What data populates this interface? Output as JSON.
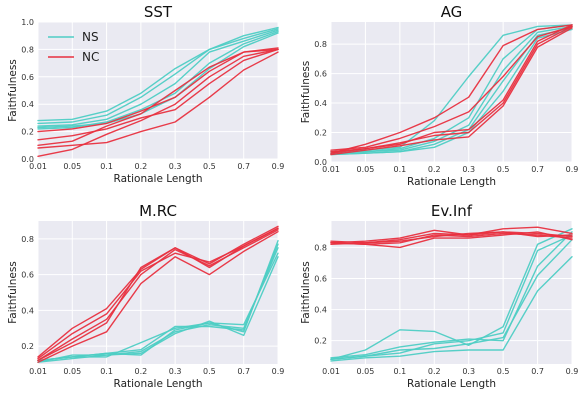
{
  "colors": {
    "NS": "#4ecdc4",
    "NC": "#e8303f",
    "panel_bg": "#eaeaf2",
    "grid": "#ffffff"
  },
  "chart_data": [
    {
      "type": "line",
      "title": "SST",
      "xlabel": "Rationale Length",
      "ylabel": "Faithfulness",
      "x": [
        "0.01",
        "0.05",
        "0.1",
        "0.2",
        "0.3",
        "0.5",
        "0.7",
        "0.9"
      ],
      "ylim": [
        0.0,
        1.0
      ],
      "yticks": [
        "0.0",
        "0.2",
        "0.4",
        "0.6",
        "0.8",
        "1.0"
      ],
      "ytick_values": [
        0.0,
        0.2,
        0.4,
        0.6,
        0.8,
        1.0
      ],
      "grid": true,
      "legend": {
        "placement": "top-left",
        "entries": [
          "NS",
          "NC"
        ]
      },
      "series": [
        {
          "group": "NS",
          "values": [
            0.26,
            0.27,
            0.32,
            0.45,
            0.62,
            0.8,
            0.88,
            0.95
          ]
        },
        {
          "group": "NS",
          "values": [
            0.24,
            0.25,
            0.29,
            0.4,
            0.55,
            0.78,
            0.86,
            0.94
          ]
        },
        {
          "group": "NS",
          "values": [
            0.22,
            0.23,
            0.27,
            0.36,
            0.48,
            0.7,
            0.84,
            0.93
          ]
        },
        {
          "group": "NS",
          "values": [
            0.28,
            0.29,
            0.35,
            0.48,
            0.66,
            0.8,
            0.9,
            0.96
          ]
        },
        {
          "group": "NS",
          "values": [
            0.23,
            0.24,
            0.26,
            0.33,
            0.45,
            0.66,
            0.82,
            0.92
          ]
        },
        {
          "group": "NC",
          "values": [
            0.02,
            0.07,
            0.18,
            0.28,
            0.4,
            0.6,
            0.75,
            0.8
          ]
        },
        {
          "group": "NC",
          "values": [
            0.08,
            0.1,
            0.12,
            0.2,
            0.27,
            0.45,
            0.65,
            0.78
          ]
        },
        {
          "group": "NC",
          "values": [
            0.14,
            0.17,
            0.22,
            0.3,
            0.36,
            0.55,
            0.72,
            0.8
          ]
        },
        {
          "group": "NC",
          "values": [
            0.2,
            0.22,
            0.26,
            0.35,
            0.45,
            0.64,
            0.78,
            0.81
          ]
        },
        {
          "group": "NC",
          "values": [
            0.1,
            0.13,
            0.24,
            0.33,
            0.5,
            0.67,
            0.78,
            0.8
          ]
        }
      ]
    },
    {
      "type": "line",
      "title": "AG",
      "xlabel": "Rationale Length",
      "ylabel": "Faithfulness",
      "x": [
        "0.01",
        "0.05",
        "0.1",
        "0.2",
        "0.3",
        "0.5",
        "0.7",
        "0.9"
      ],
      "ylim": [
        0.0,
        0.95
      ],
      "yticks": [
        "0.0",
        "0.2",
        "0.4",
        "0.6",
        "0.8"
      ],
      "ytick_values": [
        0.0,
        0.2,
        0.4,
        0.6,
        0.8
      ],
      "grid": true,
      "series": [
        {
          "group": "NS",
          "values": [
            0.07,
            0.08,
            0.1,
            0.28,
            0.58,
            0.86,
            0.92,
            0.93
          ]
        },
        {
          "group": "NS",
          "values": [
            0.06,
            0.07,
            0.08,
            0.14,
            0.25,
            0.62,
            0.88,
            0.92
          ]
        },
        {
          "group": "NS",
          "values": [
            0.05,
            0.06,
            0.07,
            0.12,
            0.22,
            0.55,
            0.86,
            0.91
          ]
        },
        {
          "group": "NS",
          "values": [
            0.06,
            0.07,
            0.09,
            0.16,
            0.3,
            0.7,
            0.9,
            0.93
          ]
        },
        {
          "group": "NS",
          "values": [
            0.05,
            0.06,
            0.07,
            0.1,
            0.2,
            0.48,
            0.84,
            0.9
          ]
        },
        {
          "group": "NC",
          "values": [
            0.06,
            0.12,
            0.2,
            0.3,
            0.44,
            0.79,
            0.9,
            0.93
          ]
        },
        {
          "group": "NC",
          "values": [
            0.07,
            0.09,
            0.13,
            0.18,
            0.2,
            0.4,
            0.8,
            0.92
          ]
        },
        {
          "group": "NC",
          "values": [
            0.05,
            0.08,
            0.11,
            0.15,
            0.17,
            0.38,
            0.78,
            0.91
          ]
        },
        {
          "group": "NC",
          "values": [
            0.08,
            0.1,
            0.16,
            0.24,
            0.34,
            0.58,
            0.85,
            0.92
          ]
        },
        {
          "group": "NC",
          "values": [
            0.06,
            0.09,
            0.12,
            0.2,
            0.22,
            0.42,
            0.82,
            0.93
          ]
        }
      ]
    },
    {
      "type": "line",
      "title": "M.RC",
      "xlabel": "Rationale Length",
      "ylabel": "Faithfulness",
      "x": [
        "0.01",
        "0.05",
        "0.1",
        "0.2",
        "0.3",
        "0.5",
        "0.7",
        "0.9"
      ],
      "ylim": [
        0.1,
        0.9
      ],
      "yticks": [
        "0.2",
        "0.4",
        "0.6",
        "0.8"
      ],
      "ytick_values": [
        0.2,
        0.4,
        0.6,
        0.8
      ],
      "grid": true,
      "series": [
        {
          "group": "NS",
          "values": [
            0.12,
            0.14,
            0.14,
            0.22,
            0.3,
            0.33,
            0.28,
            0.79
          ]
        },
        {
          "group": "NS",
          "values": [
            0.11,
            0.13,
            0.15,
            0.17,
            0.28,
            0.32,
            0.3,
            0.75
          ]
        },
        {
          "group": "NS",
          "values": [
            0.12,
            0.14,
            0.16,
            0.15,
            0.29,
            0.33,
            0.32,
            0.72
          ]
        },
        {
          "group": "NS",
          "values": [
            0.11,
            0.15,
            0.15,
            0.16,
            0.27,
            0.34,
            0.26,
            0.7
          ]
        },
        {
          "group": "NS",
          "values": [
            0.12,
            0.14,
            0.16,
            0.18,
            0.31,
            0.31,
            0.29,
            0.77
          ]
        },
        {
          "group": "NC",
          "values": [
            0.14,
            0.3,
            0.41,
            0.63,
            0.75,
            0.64,
            0.76,
            0.86
          ]
        },
        {
          "group": "NC",
          "values": [
            0.12,
            0.24,
            0.35,
            0.6,
            0.74,
            0.65,
            0.75,
            0.85
          ]
        },
        {
          "group": "NC",
          "values": [
            0.11,
            0.2,
            0.28,
            0.55,
            0.7,
            0.6,
            0.73,
            0.84
          ]
        },
        {
          "group": "NC",
          "values": [
            0.13,
            0.27,
            0.38,
            0.62,
            0.72,
            0.67,
            0.76,
            0.86
          ]
        },
        {
          "group": "NC",
          "values": [
            0.12,
            0.22,
            0.33,
            0.64,
            0.75,
            0.66,
            0.77,
            0.87
          ]
        }
      ]
    },
    {
      "type": "line",
      "title": "Ev.Inf",
      "xlabel": "Rationale Length",
      "ylabel": "Faithfulness",
      "x": [
        "0.01",
        "0.05",
        "0.1",
        "0.2",
        "0.3",
        "0.5",
        "0.7",
        "0.9"
      ],
      "ylim": [
        0.05,
        0.97
      ],
      "yticks": [
        "0.2",
        "0.4",
        "0.6",
        "0.8"
      ],
      "ytick_values": [
        0.2,
        0.4,
        0.6,
        0.8
      ],
      "grid": true,
      "series": [
        {
          "group": "NS",
          "values": [
            0.08,
            0.14,
            0.27,
            0.26,
            0.17,
            0.29,
            0.82,
            0.92
          ]
        },
        {
          "group": "NS",
          "values": [
            0.08,
            0.1,
            0.12,
            0.18,
            0.2,
            0.25,
            0.78,
            0.88
          ]
        },
        {
          "group": "NS",
          "values": [
            0.07,
            0.09,
            0.1,
            0.13,
            0.14,
            0.14,
            0.52,
            0.74
          ]
        },
        {
          "group": "NS",
          "values": [
            0.09,
            0.11,
            0.16,
            0.19,
            0.21,
            0.2,
            0.68,
            0.9
          ]
        },
        {
          "group": "NS",
          "values": [
            0.08,
            0.1,
            0.14,
            0.15,
            0.18,
            0.22,
            0.62,
            0.85
          ]
        },
        {
          "group": "NC",
          "values": [
            0.83,
            0.84,
            0.86,
            0.91,
            0.88,
            0.92,
            0.93,
            0.89
          ]
        },
        {
          "group": "NC",
          "values": [
            0.83,
            0.82,
            0.8,
            0.86,
            0.86,
            0.88,
            0.9,
            0.85
          ]
        },
        {
          "group": "NC",
          "values": [
            0.83,
            0.82,
            0.83,
            0.88,
            0.87,
            0.89,
            0.88,
            0.86
          ]
        },
        {
          "group": "NC",
          "values": [
            0.82,
            0.83,
            0.84,
            0.87,
            0.89,
            0.9,
            0.87,
            0.88
          ]
        },
        {
          "group": "NC",
          "values": [
            0.84,
            0.83,
            0.85,
            0.89,
            0.88,
            0.9,
            0.89,
            0.87
          ]
        }
      ]
    }
  ]
}
